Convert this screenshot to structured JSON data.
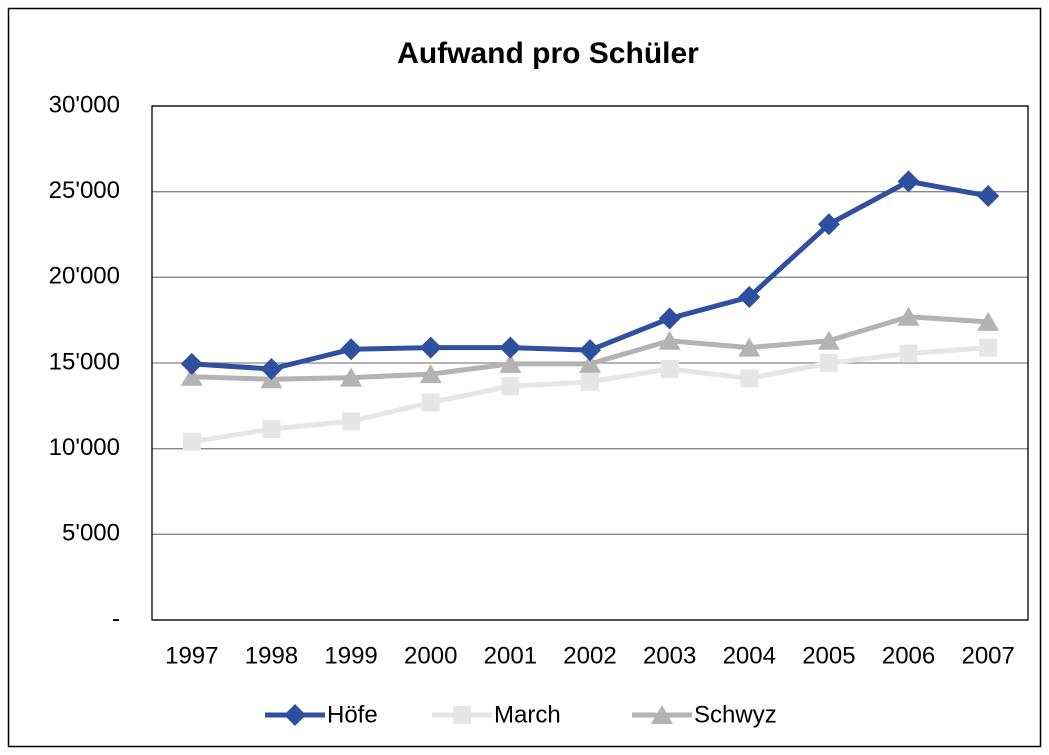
{
  "chart_data": {
    "type": "line",
    "title": "Aufwand pro Schüler",
    "categories": [
      "1997",
      "1998",
      "1999",
      "2000",
      "2001",
      "2002",
      "2003",
      "2004",
      "2005",
      "2006",
      "2007"
    ],
    "series": [
      {
        "name": "Höfe",
        "color": "#2f4f9f",
        "marker": "diamond",
        "values": [
          14950,
          14650,
          15800,
          15900,
          15900,
          15750,
          17600,
          18850,
          23100,
          25600,
          24750
        ]
      },
      {
        "name": "March",
        "color": "#e6e6e6",
        "marker": "square",
        "values": [
          10400,
          11150,
          11600,
          12700,
          13650,
          13900,
          14650,
          14100,
          15000,
          15550,
          15900
        ]
      },
      {
        "name": "Schwyz",
        "color": "#b3b3b3",
        "marker": "triangle",
        "values": [
          14200,
          14050,
          14150,
          14350,
          14950,
          14950,
          16300,
          15900,
          16300,
          17700,
          17400
        ]
      }
    ],
    "ylim": [
      0,
      30000
    ],
    "yticks": [
      {
        "value": 0,
        "label": "-"
      },
      {
        "value": 5000,
        "label": "5'000"
      },
      {
        "value": 10000,
        "label": "10'000"
      },
      {
        "value": 15000,
        "label": "15'000"
      },
      {
        "value": 20000,
        "label": "20'000"
      },
      {
        "value": 25000,
        "label": "25'000"
      },
      {
        "value": 30000,
        "label": "30'000"
      }
    ],
    "grid": true,
    "legend": "bottom"
  }
}
